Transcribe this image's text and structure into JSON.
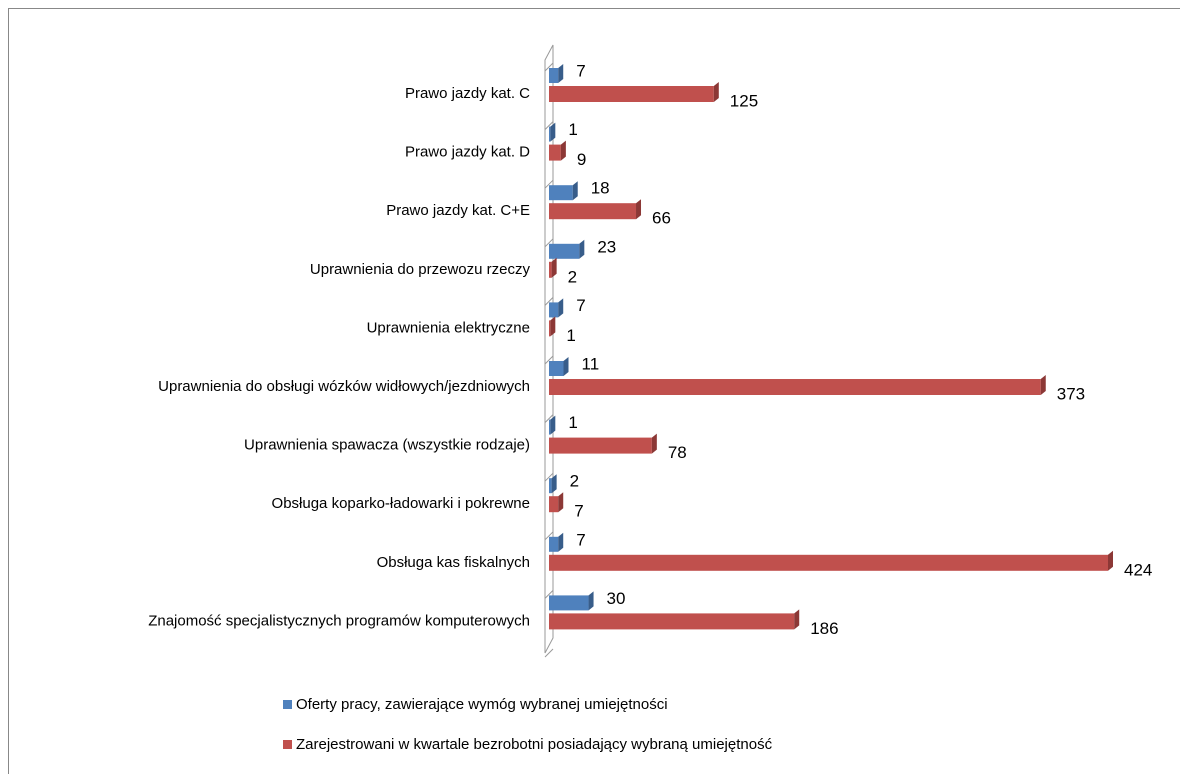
{
  "chart_data": {
    "type": "bar",
    "orientation": "horizontal",
    "categories": [
      "Prawo jazdy kat. C",
      "Prawo jazdy kat. D",
      "Prawo jazdy kat. C+E",
      "Uprawnienia do przewozu rzeczy",
      "Uprawnienia elektryczne",
      "Uprawnienia do obsługi wózków widłowych/jezdniowych",
      "Uprawnienia spawacza (wszystkie rodzaje)",
      "Obsługa koparko-ładowarki i pokrewne",
      "Obsługa kas fiskalnych",
      "Znajomość specjalistycznych programów komputerowych"
    ],
    "series": [
      {
        "name": "Oferty pracy, zawierające wymóg wybranej umiejętności",
        "color": "#4f81bd",
        "values": [
          7,
          1,
          18,
          23,
          7,
          11,
          1,
          2,
          7,
          30
        ]
      },
      {
        "name": "Zarejestrowani w kwartale bezrobotni posiadający wybraną umiejętność",
        "color": "#c0504d",
        "values": [
          125,
          9,
          66,
          2,
          1,
          373,
          78,
          7,
          424,
          186
        ]
      }
    ],
    "legend": "bottom"
  }
}
